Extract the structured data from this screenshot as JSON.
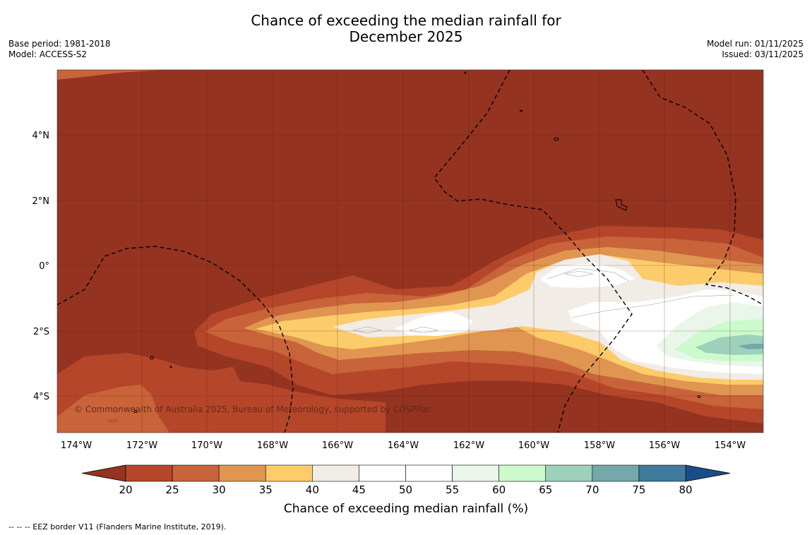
{
  "header": {
    "title_line1": "Chance of exceeding the median rainfall for",
    "title_line2": "December 2025",
    "base_period": "Base period: 1981-2018",
    "model": "Model: ACCESS-S2",
    "model_run": "Model run: 01/11/2025",
    "issued": "Issued: 03/11/2025"
  },
  "map": {
    "lon_ticks": [
      "174°W",
      "172°W",
      "170°W",
      "168°W",
      "166°W",
      "164°W",
      "162°W",
      "160°W",
      "158°W",
      "156°W",
      "154°W"
    ],
    "lat_ticks": [
      "4°N",
      "2°N",
      "0°",
      "2°S",
      "4°S"
    ],
    "copyright": "© Commonwealth of Australia 2025, Bureau of Meteorology, supported by COSPPac"
  },
  "colorbar": {
    "ticks": [
      "20",
      "25",
      "30",
      "35",
      "40",
      "45",
      "50",
      "55",
      "60",
      "65",
      "70",
      "75",
      "80"
    ],
    "colors": [
      "#b5462a",
      "#c8633a",
      "#e09550",
      "#fdcc6a",
      "#f1ece6",
      "#ffffff",
      "#ffffff",
      "#e9f6e9",
      "#ccfacc",
      "#9ed1bb",
      "#74a8aa",
      "#3f7a9c"
    ],
    "low_color": "#953321",
    "high_color": "#194d86",
    "label": "Chance of exceeding median rainfall (%)"
  },
  "footnote": "--  --  -- EEZ border V11 (Flanders Marine Institute, 2019)."
}
